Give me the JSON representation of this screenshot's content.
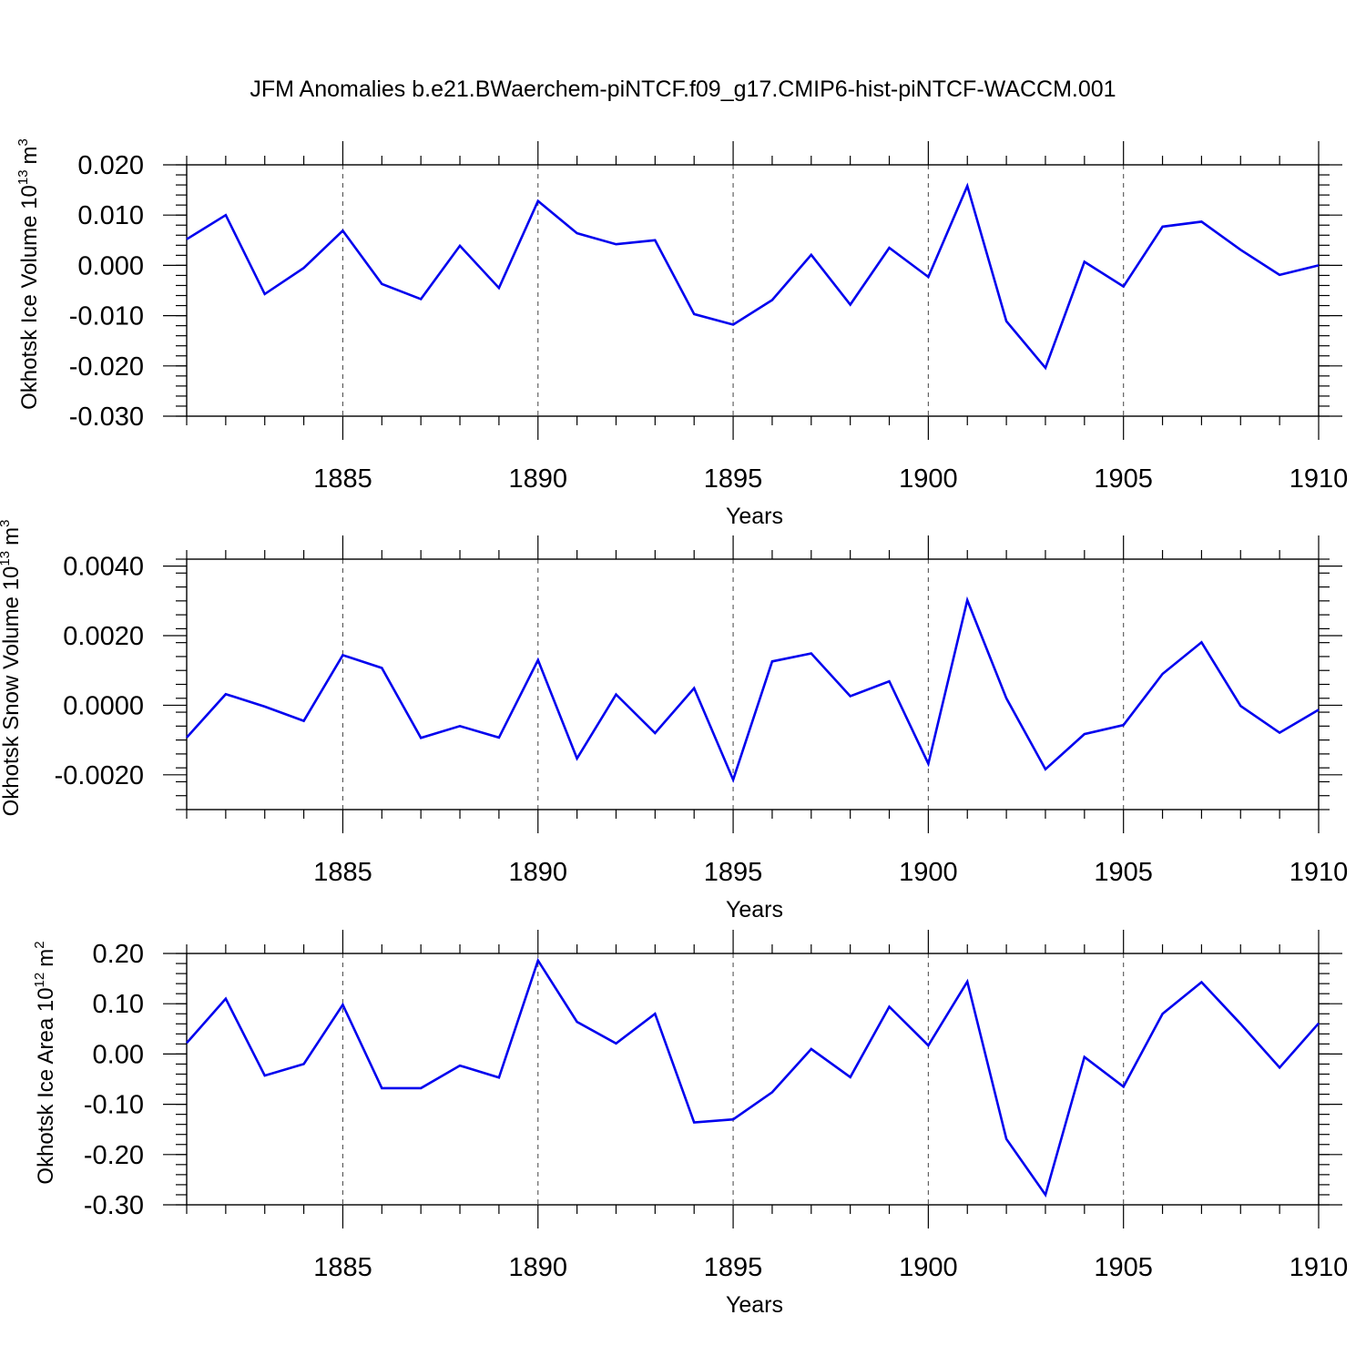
{
  "title": "JFM Anomalies b.e21.BWaerchem-piNTCF.f09_g17.CMIP6-hist-piNTCF-WACCM.001",
  "colors": {
    "series": "#0000ee",
    "grid": "#555555"
  },
  "chart_data": [
    {
      "type": "line",
      "ylabel_main": "Okhotsk Ice Volume 10",
      "ylabel_exp": "13",
      "ylabel_unit": "m",
      "ylabel_unit_exp": "3",
      "xlabel": "Years",
      "xlim": [
        1881,
        1910
      ],
      "ylim": [
        -0.03,
        0.02
      ],
      "yticks": [
        0.02,
        0.01,
        0.0,
        -0.01,
        -0.02,
        -0.03
      ],
      "ytick_labels": [
        "0.020",
        "0.010",
        "0.000",
        "-0.010",
        "-0.020",
        "-0.030"
      ],
      "y_minor_step": 0.002,
      "xticks": [
        1885,
        1890,
        1895,
        1900,
        1905,
        1910
      ],
      "xtick_labels": [
        "1885",
        "1890",
        "1895",
        "1900",
        "1905",
        "1910"
      ],
      "grid": "vertical-dashed",
      "x": [
        1881,
        1882,
        1883,
        1884,
        1885,
        1886,
        1887,
        1888,
        1889,
        1890,
        1891,
        1892,
        1893,
        1894,
        1895,
        1896,
        1897,
        1898,
        1899,
        1900,
        1901,
        1902,
        1903,
        1904,
        1905,
        1906,
        1907,
        1908,
        1909,
        1910
      ],
      "values": [
        0.0052,
        0.01,
        -0.0057,
        -0.0005,
        0.0069,
        -0.0037,
        -0.0067,
        0.0039,
        -0.0045,
        0.0128,
        0.0064,
        0.0042,
        0.005,
        -0.0097,
        -0.0118,
        -0.0069,
        0.0021,
        -0.0078,
        0.0035,
        -0.0023,
        0.0158,
        -0.0111,
        -0.0204,
        0.0007,
        -0.0042,
        0.0077,
        0.0087,
        0.0031,
        -0.0019,
        0.0
      ]
    },
    {
      "type": "line",
      "ylabel_main": "Okhotsk Snow Volume 10",
      "ylabel_exp": "13",
      "ylabel_unit": "m",
      "ylabel_unit_exp": "3",
      "xlabel": "Years",
      "xlim": [
        1881,
        1910
      ],
      "ylim": [
        -0.003,
        0.0042
      ],
      "yticks": [
        0.004,
        0.002,
        0.0,
        -0.002
      ],
      "ytick_labels": [
        "0.0040",
        "0.0020",
        "0.0000",
        "-0.0020"
      ],
      "y_minor_step": 0.0004,
      "xticks": [
        1885,
        1890,
        1895,
        1900,
        1905,
        1910
      ],
      "xtick_labels": [
        "1885",
        "1890",
        "1895",
        "1900",
        "1905",
        "1910"
      ],
      "grid": "vertical-dashed",
      "x": [
        1881,
        1882,
        1883,
        1884,
        1885,
        1886,
        1887,
        1888,
        1889,
        1890,
        1891,
        1892,
        1893,
        1894,
        1895,
        1896,
        1897,
        1898,
        1899,
        1900,
        1901,
        1902,
        1903,
        1904,
        1905,
        1906,
        1907,
        1908,
        1909,
        1910
      ],
      "values": [
        -0.00093,
        0.00032,
        -4e-05,
        -0.00045,
        0.00144,
        0.00107,
        -0.00094,
        -0.0006,
        -0.00093,
        0.0013,
        -0.00153,
        0.00031,
        -0.0008,
        0.00049,
        -0.00214,
        0.00126,
        0.00149,
        0.00026,
        0.00069,
        -0.00168,
        0.00302,
        0.0002,
        -0.00184,
        -0.00083,
        -0.00057,
        0.0009,
        0.00181,
        -2e-05,
        -0.00079,
        -0.00013
      ]
    },
    {
      "type": "line",
      "ylabel_main": "Okhotsk Ice Area 10",
      "ylabel_exp": "12",
      "ylabel_unit": "m",
      "ylabel_unit_exp": "2",
      "xlabel": "Years",
      "xlim": [
        1881,
        1910
      ],
      "ylim": [
        -0.3,
        0.2
      ],
      "yticks": [
        0.2,
        0.1,
        0.0,
        -0.1,
        -0.2,
        -0.3
      ],
      "ytick_labels": [
        "0.20",
        "0.10",
        "0.00",
        "-0.10",
        "-0.20",
        "-0.30"
      ],
      "y_minor_step": 0.02,
      "xticks": [
        1885,
        1890,
        1895,
        1900,
        1905,
        1910
      ],
      "xtick_labels": [
        "1885",
        "1890",
        "1895",
        "1900",
        "1905",
        "1910"
      ],
      "grid": "vertical-dashed",
      "x": [
        1881,
        1882,
        1883,
        1884,
        1885,
        1886,
        1887,
        1888,
        1889,
        1890,
        1891,
        1892,
        1893,
        1894,
        1895,
        1896,
        1897,
        1898,
        1899,
        1900,
        1901,
        1902,
        1903,
        1904,
        1905,
        1906,
        1907,
        1908,
        1909,
        1910
      ],
      "values": [
        0.022,
        0.11,
        -0.043,
        -0.02,
        0.098,
        -0.068,
        -0.068,
        -0.023,
        -0.047,
        0.186,
        0.064,
        0.021,
        0.08,
        -0.136,
        -0.13,
        -0.076,
        0.01,
        -0.046,
        0.094,
        0.017,
        0.144,
        -0.169,
        -0.28,
        -0.006,
        -0.065,
        0.08,
        0.143,
        0.06,
        -0.027,
        0.061
      ]
    }
  ]
}
